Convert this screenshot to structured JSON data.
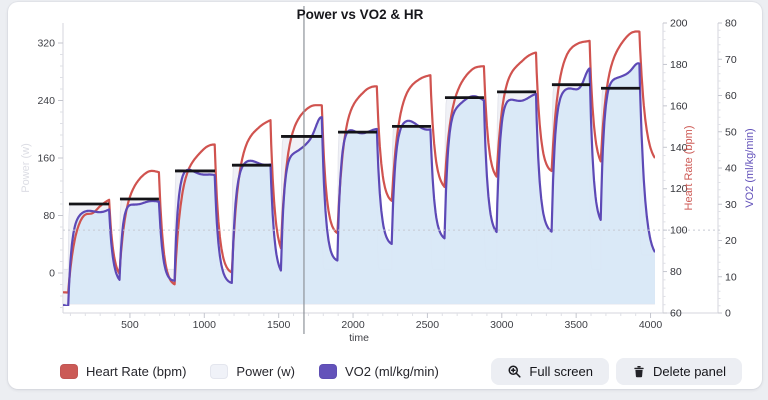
{
  "ui": {
    "buttons": {
      "full_screen": "Full screen",
      "delete_panel": "Delete panel"
    },
    "legend": [
      {
        "id": "heart_rate",
        "label": "Heart Rate (bpm)",
        "color": "#cb5a56"
      },
      {
        "id": "power",
        "label": "Power (w)",
        "color": "#f0f2f8"
      },
      {
        "id": "vo2",
        "label": "VO2 (ml/kg/min)",
        "color": "#6352ba"
      }
    ]
  },
  "chart_data": {
    "type": "line",
    "title": "Power vs VO2 & HR",
    "xlabel": "time",
    "x_range": [
      50,
      4030
    ],
    "x_ticks": [
      500,
      1000,
      1500,
      2000,
      2500,
      3000,
      3500,
      4000
    ],
    "reference_line_time": 1670,
    "dotted_gridline_heart_rate": 100,
    "axes": {
      "power": {
        "label": "Power (w)",
        "side": "left",
        "ticks": [
          0,
          80,
          160,
          240,
          320
        ],
        "color": "#dcdde4"
      },
      "heart_rate": {
        "label": "Heart Rate (bpm)",
        "side": "right",
        "range": [
          60,
          200
        ],
        "ticks": [
          60,
          80,
          100,
          120,
          140,
          160,
          180,
          200
        ],
        "color": "#cd5a55"
      },
      "vo2": {
        "label": "VO2 (ml/kg/min)",
        "side": "right",
        "range": [
          0,
          80
        ],
        "ticks": [
          0,
          10,
          20,
          30,
          40,
          50,
          60,
          70,
          80
        ],
        "color": "#6352ba"
      }
    },
    "series_colors": {
      "heart_rate": "#d0534f",
      "vo2_line": "#5d49b6",
      "vo2_area": "#d8e8f7",
      "power_area": "#f0f1f6",
      "interval_avg": "#141418"
    },
    "start_state": {
      "hr_bpm": 70,
      "vo2": 2,
      "power_w": 5
    },
    "cooldown": {
      "hr_bpm": 131,
      "vo2": 14,
      "power_w": 25
    },
    "intervals": [
      {
        "t_start": 90,
        "t_end": 360,
        "power_w": 96,
        "hr_bpm": 113,
        "vo2": 28,
        "rest_hr": 80,
        "rest_vo2": 8
      },
      {
        "t_start": 433,
        "t_end": 695,
        "power_w": 103,
        "hr_bpm": 127,
        "vo2": 31,
        "rest_hr": 78,
        "rest_vo2": 9
      },
      {
        "t_start": 803,
        "t_end": 1072,
        "power_w": 142,
        "hr_bpm": 139,
        "vo2": 38,
        "rest_hr": 84,
        "rest_vo2": 10
      },
      {
        "t_start": 1186,
        "t_end": 1448,
        "power_w": 150,
        "hr_bpm": 150,
        "vo2": 42,
        "rest_hr": 90,
        "rest_vo2": 11.5
      },
      {
        "t_start": 1516,
        "t_end": 1791,
        "power_w": 190,
        "hr_bpm": 160,
        "vo2": 47,
        "vo2_peak": 54,
        "rest_hr": 102,
        "rest_vo2": 14
      },
      {
        "t_start": 1899,
        "t_end": 2161,
        "power_w": 196,
        "hr_bpm": 168,
        "vo2": 50,
        "rest_hr": 118,
        "rest_vo2": 19
      },
      {
        "t_start": 2262,
        "t_end": 2524,
        "power_w": 204,
        "hr_bpm": 172,
        "vo2": 52,
        "rest_hr": 124,
        "rest_vo2": 21
      },
      {
        "t_start": 2618,
        "t_end": 2880,
        "power_w": 244,
        "hr_bpm": 178,
        "vo2": 58,
        "rest_hr": 128,
        "rest_vo2": 22.5
      },
      {
        "t_start": 2968,
        "t_end": 3230,
        "power_w": 252,
        "hr_bpm": 184,
        "vo2": 60,
        "rest_hr": 132,
        "rest_vo2": 23.5
      },
      {
        "t_start": 3337,
        "t_end": 3593,
        "power_w": 262,
        "hr_bpm": 190,
        "vo2": 63,
        "vo2_peak": 70,
        "rest_hr": 134,
        "rest_vo2": 24
      },
      {
        "t_start": 3667,
        "t_end": 3929,
        "power_w": 257,
        "hr_bpm": 194,
        "vo2": 64,
        "vo2_peak": 68,
        "rest_hr": 131,
        "rest_vo2": 14
      }
    ]
  }
}
